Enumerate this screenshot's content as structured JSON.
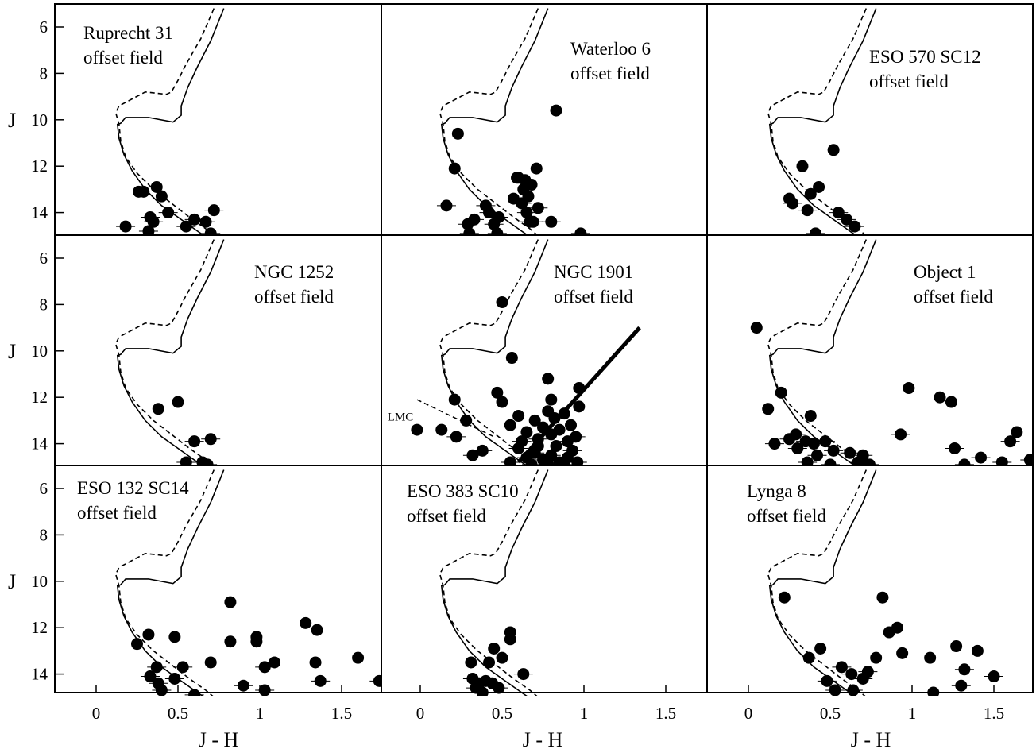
{
  "figure": {
    "xlabel": "J - H",
    "ylabel": "J",
    "x_ticks": [
      "0",
      "0.5",
      "1",
      "1.5"
    ],
    "y_ticks": [
      "6",
      "8",
      "10",
      "12",
      "14"
    ]
  },
  "chart_data": [
    {
      "type": "scatter",
      "title_lines": [
        "Ruprecht 31",
        "offset field"
      ],
      "xlabel": "",
      "ylabel": "J",
      "xlim": [
        -0.25,
        1.75
      ],
      "ylim": [
        15,
        5.2
      ],
      "points": [
        [
          0.18,
          14.6
        ],
        [
          0.26,
          13.1
        ],
        [
          0.29,
          13.1
        ],
        [
          0.37,
          12.9
        ],
        [
          0.33,
          14.2
        ],
        [
          0.4,
          13.3
        ],
        [
          0.35,
          14.4
        ],
        [
          0.32,
          14.8
        ],
        [
          0.44,
          14.0
        ],
        [
          0.55,
          14.6
        ],
        [
          0.6,
          14.3
        ],
        [
          0.67,
          14.4
        ],
        [
          0.7,
          14.9
        ],
        [
          0.72,
          13.9
        ]
      ],
      "isochrones": [
        "isochrone-1",
        "isochrone-2"
      ]
    },
    {
      "type": "scatter",
      "title_lines": [
        "Waterloo 6",
        "offset field"
      ],
      "xlabel": "",
      "ylabel": "",
      "xlim": [
        -0.25,
        1.75
      ],
      "ylim": [
        15,
        5.2
      ],
      "points": [
        [
          0.83,
          9.6
        ],
        [
          0.23,
          10.6
        ],
        [
          0.21,
          12.1
        ],
        [
          0.16,
          13.7
        ],
        [
          0.29,
          14.5
        ],
        [
          0.33,
          14.3
        ],
        [
          0.3,
          14.9
        ],
        [
          0.4,
          13.7
        ],
        [
          0.42,
          14.0
        ],
        [
          0.45,
          14.5
        ],
        [
          0.47,
          14.9
        ],
        [
          0.48,
          14.2
        ],
        [
          0.57,
          13.4
        ],
        [
          0.6,
          12.5
        ],
        [
          0.63,
          13.0
        ],
        [
          0.62,
          13.6
        ],
        [
          0.65,
          14.0
        ],
        [
          0.67,
          14.4
        ],
        [
          0.68,
          12.8
        ],
        [
          0.71,
          12.1
        ],
        [
          0.72,
          13.8
        ],
        [
          0.64,
          12.6
        ],
        [
          0.66,
          13.3
        ],
        [
          0.69,
          14.4
        ],
        [
          0.8,
          14.4
        ],
        [
          0.98,
          14.9
        ],
        [
          0.59,
          12.5
        ]
      ],
      "isochrones": [
        "isochrone-1",
        "isochrone-2"
      ]
    },
    {
      "type": "scatter",
      "title_lines": [
        "ESO 570 SC12",
        "offset field"
      ],
      "xlabel": "",
      "ylabel": "",
      "xlim": [
        -0.25,
        1.75
      ],
      "ylim": [
        15,
        5.2
      ],
      "points": [
        [
          0.52,
          11.3
        ],
        [
          0.33,
          12.0
        ],
        [
          0.25,
          13.4
        ],
        [
          0.27,
          13.6
        ],
        [
          0.38,
          13.2
        ],
        [
          0.43,
          12.9
        ],
        [
          0.36,
          13.9
        ],
        [
          0.41,
          14.9
        ],
        [
          0.55,
          14.0
        ],
        [
          0.6,
          14.3
        ],
        [
          0.65,
          14.6
        ]
      ],
      "isochrones": [
        "isochrone-1",
        "isochrone-2"
      ]
    },
    {
      "type": "scatter",
      "title_lines": [
        "NGC 1252",
        "offset field"
      ],
      "xlabel": "",
      "ylabel": "J",
      "xlim": [
        -0.25,
        1.75
      ],
      "ylim": [
        15,
        5.2
      ],
      "points": [
        [
          0.38,
          12.5
        ],
        [
          0.5,
          12.2
        ],
        [
          0.6,
          13.9
        ],
        [
          0.65,
          14.8
        ],
        [
          0.7,
          13.8
        ],
        [
          0.68,
          14.9
        ],
        [
          0.55,
          14.8
        ]
      ],
      "isochrones": [
        "isochrone-1",
        "isochrone-2"
      ]
    },
    {
      "type": "scatter",
      "title_lines": [
        "NGC 1901",
        "offset field"
      ],
      "annotation": "LMC",
      "xlabel": "",
      "ylabel": "",
      "xlim": [
        -0.25,
        1.75
      ],
      "ylim": [
        15,
        5.2
      ],
      "points": [
        [
          0.5,
          7.9
        ],
        [
          0.56,
          10.3
        ],
        [
          0.21,
          12.1
        ],
        [
          0.47,
          11.8
        ],
        [
          0.5,
          12.2
        ],
        [
          0.78,
          11.2
        ],
        [
          0.97,
          11.6
        ],
        [
          0.8,
          12.1
        ],
        [
          -0.02,
          13.4
        ],
        [
          0.13,
          13.4
        ],
        [
          0.22,
          13.7
        ],
        [
          0.28,
          13.0
        ],
        [
          0.32,
          14.5
        ],
        [
          0.38,
          14.3
        ],
        [
          0.55,
          13.2
        ],
        [
          0.6,
          12.8
        ],
        [
          0.65,
          13.5
        ],
        [
          0.7,
          13.0
        ],
        [
          0.72,
          13.8
        ],
        [
          0.75,
          13.3
        ],
        [
          0.78,
          12.6
        ],
        [
          0.8,
          13.6
        ],
        [
          0.82,
          12.9
        ],
        [
          0.85,
          13.4
        ],
        [
          0.88,
          12.7
        ],
        [
          0.9,
          13.9
        ],
        [
          0.92,
          13.2
        ],
        [
          0.95,
          13.7
        ],
        [
          0.97,
          12.4
        ],
        [
          0.93,
          14.3
        ],
        [
          0.6,
          14.2
        ],
        [
          0.65,
          14.6
        ],
        [
          0.7,
          14.4
        ],
        [
          0.75,
          14.7
        ],
        [
          0.8,
          14.5
        ],
        [
          0.85,
          14.8
        ],
        [
          0.9,
          14.6
        ],
        [
          0.55,
          14.8
        ],
        [
          0.68,
          14.9
        ],
        [
          0.78,
          14.9
        ],
        [
          0.88,
          14.9
        ],
        [
          0.72,
          14.1
        ],
        [
          0.83,
          14.1
        ],
        [
          0.62,
          13.9
        ],
        [
          0.96,
          14.8
        ]
      ],
      "reddening_line": [
        [
          0.6,
          14.8
        ],
        [
          1.34,
          9.0
        ]
      ],
      "isochrones": [
        "isochrone-1",
        "isochrone-2"
      ]
    },
    {
      "type": "scatter",
      "title_lines": [
        "Object 1",
        "offset field"
      ],
      "xlabel": "",
      "ylabel": "",
      "xlim": [
        -0.25,
        1.75
      ],
      "ylim": [
        15,
        5.2
      ],
      "points": [
        [
          0.05,
          9.0
        ],
        [
          0.12,
          12.5
        ],
        [
          0.2,
          11.8
        ],
        [
          0.16,
          14.0
        ],
        [
          0.25,
          13.8
        ],
        [
          0.29,
          13.6
        ],
        [
          0.3,
          14.2
        ],
        [
          0.35,
          13.9
        ],
        [
          0.38,
          12.8
        ],
        [
          0.4,
          14.0
        ],
        [
          0.42,
          14.5
        ],
        [
          0.47,
          13.9
        ],
        [
          0.52,
          14.3
        ],
        [
          0.36,
          14.8
        ],
        [
          0.5,
          14.9
        ],
        [
          0.62,
          14.4
        ],
        [
          0.67,
          14.8
        ],
        [
          0.7,
          14.5
        ],
        [
          0.74,
          14.9
        ],
        [
          0.98,
          11.6
        ],
        [
          0.93,
          13.6
        ],
        [
          1.17,
          12.0
        ],
        [
          1.24,
          12.2
        ],
        [
          1.26,
          14.2
        ],
        [
          1.32,
          14.9
        ],
        [
          1.42,
          14.6
        ],
        [
          1.55,
          14.8
        ],
        [
          1.6,
          13.9
        ],
        [
          1.64,
          13.5
        ],
        [
          1.72,
          14.7
        ]
      ],
      "isochrones": [
        "isochrone-1",
        "isochrone-2"
      ]
    },
    {
      "type": "scatter",
      "title_lines": [
        "ESO 132 SC14",
        "offset field"
      ],
      "xlabel": "J - H",
      "ylabel": "J",
      "xlim": [
        -0.25,
        1.75
      ],
      "ylim": [
        15,
        5.2
      ],
      "points": [
        [
          0.25,
          12.7
        ],
        [
          0.32,
          12.3
        ],
        [
          0.33,
          14.1
        ],
        [
          0.37,
          13.7
        ],
        [
          0.38,
          14.4
        ],
        [
          0.4,
          14.7
        ],
        [
          0.48,
          12.4
        ],
        [
          0.48,
          14.2
        ],
        [
          0.53,
          13.7
        ],
        [
          0.6,
          14.9
        ],
        [
          0.7,
          13.5
        ],
        [
          0.82,
          10.9
        ],
        [
          0.82,
          12.6
        ],
        [
          0.9,
          14.5
        ],
        [
          0.98,
          12.4
        ],
        [
          0.98,
          12.6
        ],
        [
          1.03,
          13.7
        ],
        [
          1.03,
          14.7
        ],
        [
          1.09,
          13.5
        ],
        [
          1.28,
          11.8
        ],
        [
          1.35,
          12.1
        ],
        [
          1.34,
          13.5
        ],
        [
          1.37,
          14.3
        ],
        [
          1.6,
          13.3
        ],
        [
          1.73,
          14.3
        ]
      ],
      "isochrones": [
        "isochrone-1",
        "isochrone-2"
      ]
    },
    {
      "type": "scatter",
      "title_lines": [
        "ESO 383 SC10",
        "offset field"
      ],
      "xlabel": "J - H",
      "ylabel": "",
      "xlim": [
        -0.25,
        1.75
      ],
      "ylim": [
        15,
        5.2
      ],
      "points": [
        [
          0.31,
          13.5
        ],
        [
          0.32,
          14.2
        ],
        [
          0.34,
          14.6
        ],
        [
          0.38,
          14.8
        ],
        [
          0.4,
          14.3
        ],
        [
          0.42,
          13.5
        ],
        [
          0.45,
          12.9
        ],
        [
          0.48,
          14.6
        ],
        [
          0.5,
          13.3
        ],
        [
          0.55,
          12.2
        ],
        [
          0.55,
          12.5
        ],
        [
          0.63,
          14.0
        ],
        [
          0.36,
          14.4
        ],
        [
          0.44,
          14.4
        ]
      ],
      "isochrones": [
        "isochrone-1",
        "isochrone-2"
      ]
    },
    {
      "type": "scatter",
      "title_lines": [
        "Lynga 8",
        "offset field"
      ],
      "xlabel": "J - H",
      "ylabel": "",
      "xlim": [
        -0.25,
        1.75
      ],
      "ylim": [
        15,
        5.2
      ],
      "points": [
        [
          0.22,
          10.7
        ],
        [
          0.37,
          13.3
        ],
        [
          0.44,
          12.9
        ],
        [
          0.48,
          14.3
        ],
        [
          0.53,
          14.7
        ],
        [
          0.57,
          13.7
        ],
        [
          0.63,
          14.0
        ],
        [
          0.64,
          14.7
        ],
        [
          0.7,
          14.2
        ],
        [
          0.73,
          13.9
        ],
        [
          0.78,
          13.3
        ],
        [
          0.82,
          10.7
        ],
        [
          0.86,
          12.2
        ],
        [
          0.91,
          12.0
        ],
        [
          0.94,
          13.1
        ],
        [
          1.11,
          13.3
        ],
        [
          1.13,
          14.8
        ],
        [
          1.27,
          12.8
        ],
        [
          1.3,
          14.5
        ],
        [
          1.32,
          13.8
        ],
        [
          1.4,
          13.0
        ],
        [
          1.5,
          14.1
        ]
      ],
      "isochrones": [
        "isochrone-1",
        "isochrone-2"
      ]
    }
  ]
}
